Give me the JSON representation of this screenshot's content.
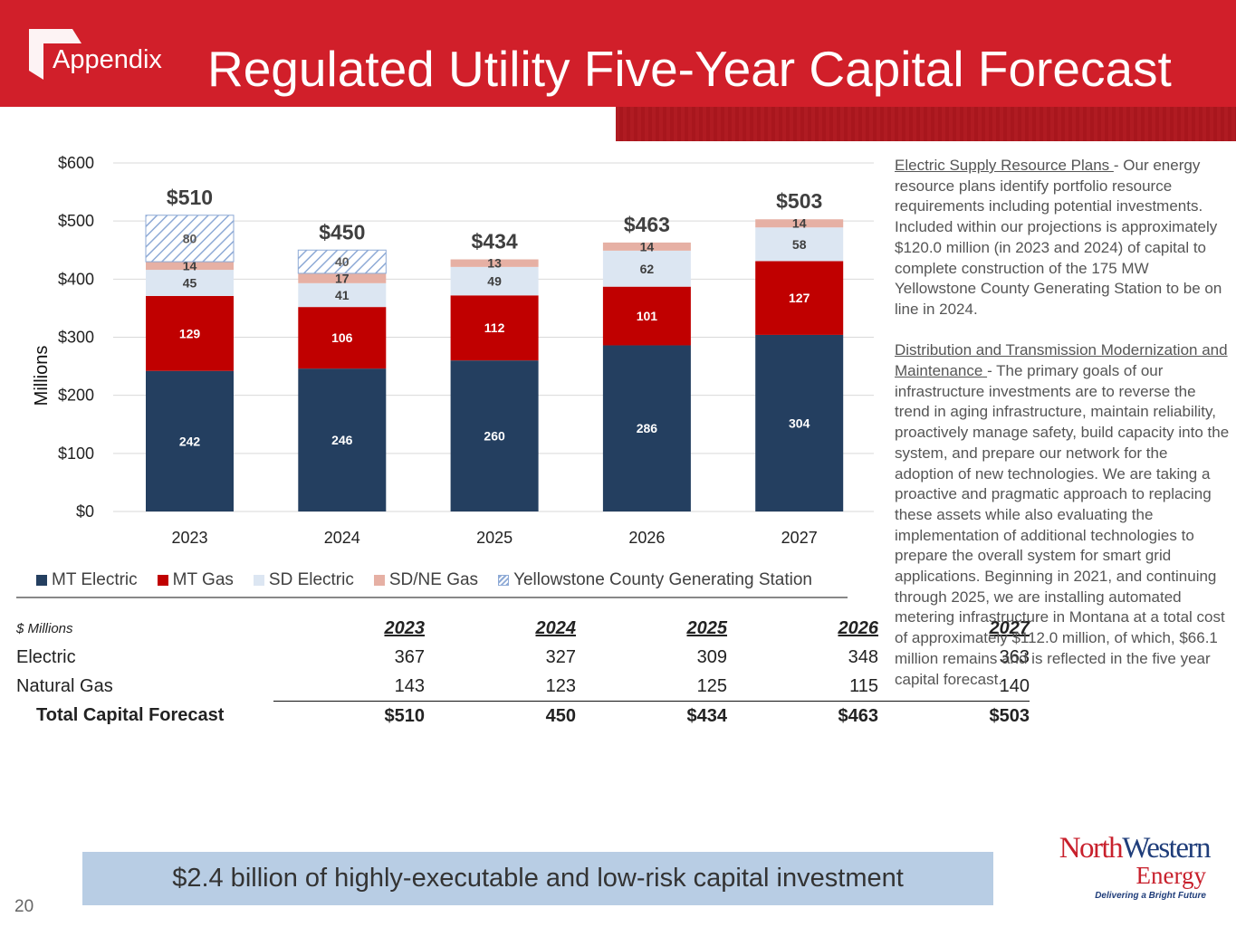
{
  "header": {
    "section": "Appendix",
    "title": "Regulated Utility Five-Year Capital Forecast"
  },
  "colors": {
    "header_red": "#d11f2a",
    "mt_electric": "#243f60",
    "mt_gas": "#c00000",
    "sd_electric": "#dce6f2",
    "sd_ne_gas": "#e6b0a4",
    "yellowstone": "#8eaad6",
    "banner": "#b8cde4"
  },
  "chart_data": {
    "type": "bar",
    "stacked": true,
    "title": "",
    "xlabel": "",
    "ylabel": "Millions",
    "ylim": [
      0,
      600
    ],
    "yticks": [
      0,
      100,
      200,
      300,
      400,
      500,
      600
    ],
    "ytick_labels": [
      "$0",
      "$100",
      "$200",
      "$300",
      "$400",
      "$500",
      "$600"
    ],
    "grid": true,
    "legend_position": "bottom",
    "categories": [
      "2023",
      "2024",
      "2025",
      "2026",
      "2027"
    ],
    "series": [
      {
        "name": "MT Electric",
        "values": [
          242,
          246,
          260,
          286,
          304
        ],
        "color": "#243f60",
        "label_color": "#ffffff"
      },
      {
        "name": "MT Gas",
        "values": [
          129,
          106,
          112,
          101,
          127
        ],
        "color": "#c00000",
        "label_color": "#ffffff"
      },
      {
        "name": "SD Electric",
        "values": [
          45,
          41,
          49,
          62,
          58
        ],
        "color": "#dce6f2",
        "label_color": "#3f3f3f"
      },
      {
        "name": "SD/NE Gas",
        "values": [
          14,
          17,
          13,
          14,
          14
        ],
        "color": "#e6b0a4",
        "label_color": "#3f3f3f"
      },
      {
        "name": "Yellowstone County Generating Station",
        "values": [
          80,
          40,
          0,
          0,
          0
        ],
        "color": "#8eaad6",
        "pattern": "hatch",
        "label_color": "#595959"
      }
    ],
    "totals": [
      "$510",
      "$450",
      "$434",
      "$463",
      "$503"
    ]
  },
  "table": {
    "units_label": "$ Millions",
    "years": [
      "2023",
      "2024",
      "2025",
      "2026",
      "2027"
    ],
    "rows": [
      {
        "label": "Electric",
        "values": [
          "367",
          "327",
          "309",
          "348",
          "363"
        ]
      },
      {
        "label": "Natural Gas",
        "values": [
          "143",
          "123",
          "125",
          "115",
          "140"
        ]
      }
    ],
    "total": {
      "label": "Total Capital Forecast",
      "values": [
        "$510",
        "450",
        "$434",
        "$463",
        "$503"
      ]
    }
  },
  "sidebar": {
    "paragraphs": [
      {
        "heading": "Electric Supply Resource Plans ",
        "body": "- Our energy resource plans identify portfolio resource requirements including potential investments. Included within our projections is approximately $120.0 million (in 2023 and 2024) of capital to complete construction of the 175 MW Yellowstone County Generating Station to be on line in 2024."
      },
      {
        "heading": "Distribution and Transmission Modernization and Maintenance ",
        "body": "- The primary goals of our infrastructure investments are to reverse the trend in aging infrastructure, maintain reliability, proactively manage safety, build capacity into the system, and prepare our network for the adoption of new technologies. We are taking a proactive and pragmatic approach to replacing these assets while also evaluating the implementation of additional technologies to prepare the overall system for smart grid applications. Beginning in 2021, and continuing through 2025, we are installing automated metering infrastructure in Montana at a total cost of approximately $112.0 million, of which, $66.1 million remains and is reflected in the five year capital forecast."
      }
    ]
  },
  "banner": {
    "text": "$2.4 billion of highly-executable and low-risk capital investment"
  },
  "footer": {
    "page_number": "20"
  },
  "logo": {
    "north": "North",
    "western": "Western",
    "energy": "Energy",
    "tagline": "Delivering a Bright Future"
  }
}
